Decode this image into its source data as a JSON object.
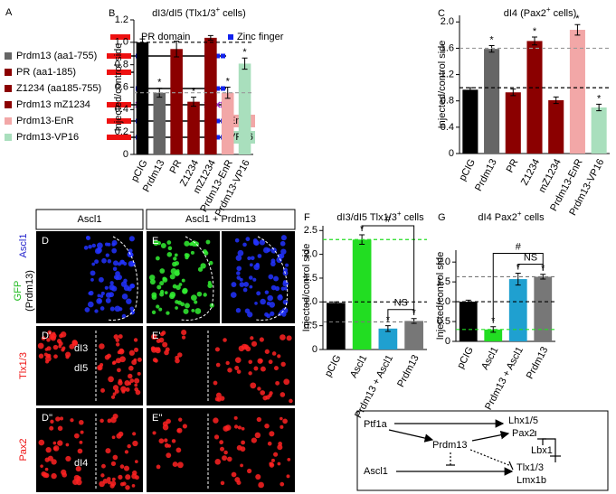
{
  "panel_a": {
    "label": "A",
    "legend": [
      "PR domain",
      "Zinc finger"
    ],
    "constructs": [
      {
        "name": "Prdm13 (aa1-755)",
        "color": "#666666"
      },
      {
        "name": "PR (aa1-185)",
        "color": "#8b0000"
      },
      {
        "name": "Z1234 (aa185-755)",
        "color": "#8b0000"
      },
      {
        "name": "Prdm13 mZ1234",
        "color": "#8b0000"
      },
      {
        "name": "Prdm13-EnR",
        "color": "#f2a7a7"
      },
      {
        "name": "Prdm13-VP16",
        "color": "#a9dfbd"
      }
    ],
    "tags": [
      "EnR",
      "VP16"
    ]
  },
  "chart_data": [
    {
      "type": "bar",
      "panel": "B",
      "title_parts": [
        "dI3/dI5 (Tlx1/3",
        "+",
        " cells)"
      ],
      "ylabel": "Injected/control side",
      "categories": [
        "pCIG",
        "Prdm13",
        "PR",
        "Z1234",
        "mZ1234",
        "Prdm13-EnR",
        "Prdm13-VP16"
      ],
      "values": [
        1.0,
        0.55,
        0.94,
        0.47,
        1.04,
        0.55,
        0.81
      ],
      "errors": [
        0.03,
        0.04,
        0.07,
        0.04,
        0.02,
        0.05,
        0.05
      ],
      "colors": [
        "#000000",
        "#666666",
        "#8b0000",
        "#8b0000",
        "#8b0000",
        "#f2a7a7",
        "#a9dfbd"
      ],
      "star_labels": [
        null,
        "*",
        null,
        "*",
        null,
        "*",
        "*"
      ],
      "ref_lines": [
        {
          "value": 1.0,
          "color": "#000000"
        },
        {
          "value": 0.55,
          "color": "#999999"
        }
      ],
      "ylim": [
        0,
        1.2
      ],
      "yticks": [
        0,
        0.2,
        0.4,
        0.6,
        0.8,
        {
          "value": 1,
          "label": "1.0"
        },
        1.2
      ]
    },
    {
      "type": "bar",
      "panel": "C",
      "title_parts": [
        "dI4 (Pax2",
        "+",
        " cells)"
      ],
      "ylabel": "Injected/control side",
      "categories": [
        "pCIG",
        "Prdm13",
        "PR",
        "Z1234",
        "mZ1234",
        "Prdm13-EnR",
        "Prdm13-VP16"
      ],
      "values": [
        0.97,
        1.59,
        0.93,
        1.71,
        0.81,
        1.88,
        0.7
      ],
      "errors": [
        0.03,
        0.05,
        0.05,
        0.06,
        0.05,
        0.08,
        0.05
      ],
      "colors": [
        "#000000",
        "#666666",
        "#8b0000",
        "#8b0000",
        "#8b0000",
        "#f2a7a7",
        "#a9dfbd"
      ],
      "star_labels": [
        null,
        "*",
        null,
        "*",
        null,
        "*",
        "*"
      ],
      "ref_lines": [
        {
          "value": 1.0,
          "color": "#000000"
        },
        {
          "value": 1.6,
          "color": "#999999"
        }
      ],
      "ylim": [
        0,
        2.1
      ],
      "yticks": [
        0,
        0.4,
        0.8,
        1.2,
        1.6,
        {
          "value": 2,
          "label": "2.0"
        }
      ]
    },
    {
      "type": "bar",
      "panel": "F",
      "title_parts": [
        "dI3/dI5 Tlx1/3",
        "+",
        " cells"
      ],
      "ylabel": "Injected/control side",
      "categories": [
        "pCIG",
        "Ascl1",
        "Prdm13 + Ascl1",
        "Prdm13"
      ],
      "values": [
        0.98,
        2.31,
        0.44,
        0.6
      ],
      "errors": [
        0.02,
        0.1,
        0.06,
        0.05
      ],
      "colors": [
        "#000000",
        "#22dd22",
        "#1fa0d0",
        "#777777"
      ],
      "star_labels": [
        null,
        "*",
        "*",
        "*"
      ],
      "ref_lines": [
        {
          "value": 2.31,
          "color": "#22dd22"
        },
        {
          "value": 1.0,
          "color": "#000000"
        },
        {
          "value": 0.58,
          "color": "#777777"
        }
      ],
      "brackets": [
        {
          "from": 2,
          "to": 3,
          "label": "NS"
        },
        {
          "from": 1,
          "to": 3,
          "label": "#"
        }
      ],
      "ylim": [
        0,
        2.6
      ],
      "yticks": [
        0,
        0.5,
        {
          "value": 1,
          "label": "1.0"
        },
        1.5,
        {
          "value": 2,
          "label": "2.0"
        },
        2.5
      ]
    },
    {
      "type": "bar",
      "panel": "G",
      "title_parts": [
        "dI4 Pax2",
        "+",
        " cells"
      ],
      "ylabel": "Injected/control side",
      "categories": [
        "pCIG",
        "Ascl1",
        "Prdm13 + Ascl1",
        "Prdm13"
      ],
      "values": [
        1.0,
        0.3,
        1.57,
        1.63
      ],
      "errors": [
        0.04,
        0.07,
        0.15,
        0.06
      ],
      "colors": [
        "#000000",
        "#22dd22",
        "#1fa0d0",
        "#777777"
      ],
      "star_labels": [
        null,
        "*",
        "*",
        "*"
      ],
      "ref_lines": [
        {
          "value": 1.63,
          "color": "#777777"
        },
        {
          "value": 1.0,
          "color": "#000000"
        },
        {
          "value": 0.3,
          "color": "#22dd22"
        }
      ],
      "brackets": [
        {
          "from": 2,
          "to": 3,
          "label": "NS"
        },
        {
          "from": 1,
          "to": 3,
          "label": "#"
        }
      ],
      "ylim": [
        0,
        2.3
      ],
      "yticks": [
        0,
        0.5,
        {
          "value": 1,
          "label": "1.0"
        },
        1.5,
        {
          "value": 2,
          "label": "2.0"
        }
      ]
    }
  ],
  "panel_de": {
    "column_headers": [
      "Ascl1",
      "Ascl1 + Prdm13"
    ],
    "row_labels": {
      "ascl1": "Ascl1",
      "gfp": "GFP",
      "prdm13": "(Prdm13)",
      "tlx": "Tlx1/3",
      "pax2": "Pax2"
    },
    "image_labels": [
      "D",
      "E",
      "D'",
      "E'",
      "D''",
      "E''"
    ],
    "annotations": [
      "dI3",
      "dI5",
      "dI4"
    ]
  },
  "panel_h": {
    "nodes": [
      "Ptf1a",
      "Lhx1/5",
      "Pax2",
      "Prdm13",
      "Lbx1",
      "Ascl1",
      "Tlx1/3",
      "Lmx1b"
    ]
  }
}
